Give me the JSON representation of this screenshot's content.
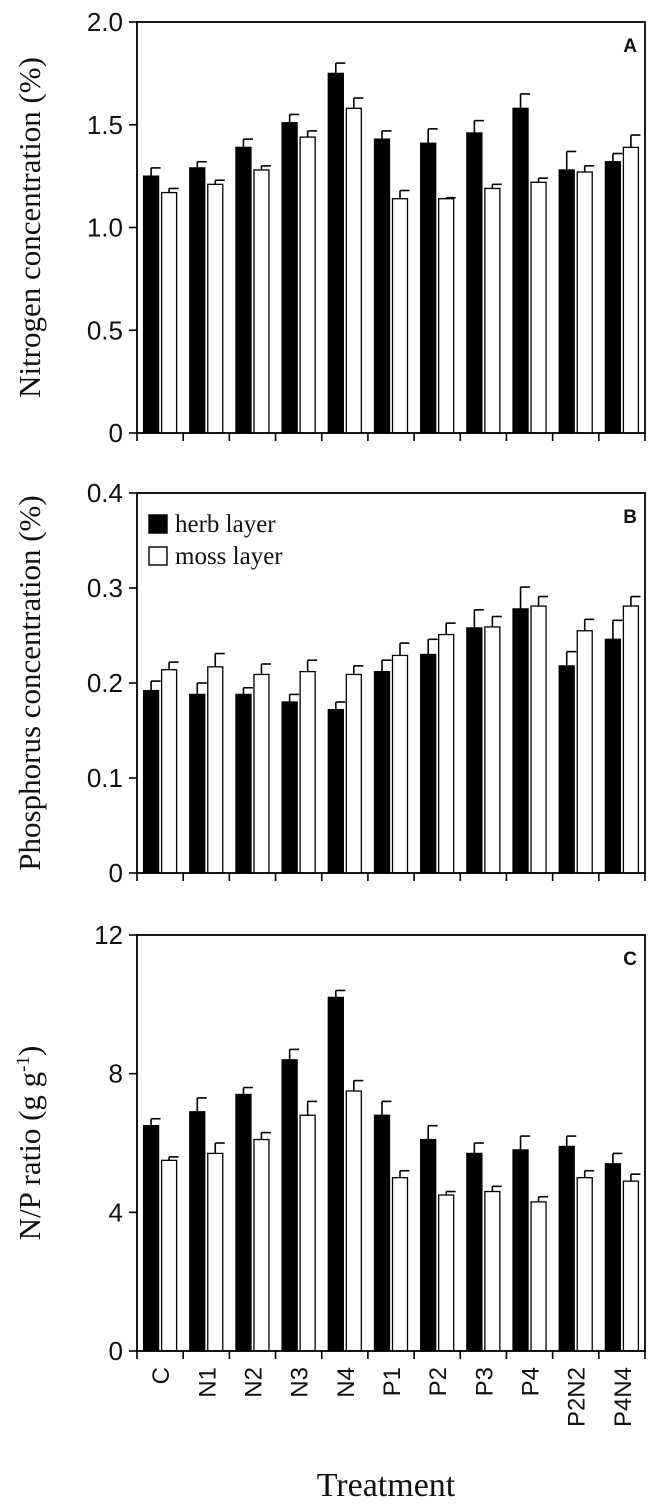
{
  "figure": {
    "xlabel": "Treatment"
  },
  "chart_data": [
    {
      "type": "bar",
      "panel": "A",
      "title": "",
      "xlabel": "",
      "ylabel": "Nitrogen concentration (%)",
      "ylim": [
        0,
        2.0
      ],
      "yticks": [
        "0",
        "0.5",
        "1.0",
        "1.5",
        "2.0"
      ],
      "ytick_values": [
        0,
        0.5,
        1.0,
        1.5,
        2.0
      ],
      "categories": [
        "C",
        "N1",
        "N2",
        "N3",
        "N4",
        "P1",
        "P2",
        "P3",
        "P4",
        "P2N2",
        "P4N4"
      ],
      "series": [
        {
          "name": "herb layer",
          "color": "#000000",
          "values": [
            1.25,
            1.29,
            1.39,
            1.51,
            1.75,
            1.43,
            1.41,
            1.46,
            1.58,
            1.28,
            1.32
          ],
          "errors": [
            0.04,
            0.03,
            0.04,
            0.04,
            0.05,
            0.04,
            0.07,
            0.06,
            0.07,
            0.09,
            0.04
          ]
        },
        {
          "name": "moss layer",
          "color": "#ffffff",
          "values": [
            1.17,
            1.21,
            1.28,
            1.44,
            1.58,
            1.14,
            1.14,
            1.19,
            1.22,
            1.27,
            1.39
          ],
          "errors": [
            0.02,
            0.02,
            0.02,
            0.03,
            0.05,
            0.04,
            0.005,
            0.02,
            0.02,
            0.03,
            0.06
          ]
        }
      ],
      "legend": false,
      "grid": false
    },
    {
      "type": "bar",
      "panel": "B",
      "title": "",
      "xlabel": "",
      "ylabel": "Phosphorus concentration (%)",
      "ylim": [
        0,
        0.4
      ],
      "yticks": [
        "0",
        "0.1",
        "0.2",
        "0.3",
        "0.4"
      ],
      "ytick_values": [
        0,
        0.1,
        0.2,
        0.3,
        0.4
      ],
      "categories": [
        "C",
        "N1",
        "N2",
        "N3",
        "N4",
        "P1",
        "P2",
        "P3",
        "P4",
        "P2N2",
        "P4N4"
      ],
      "series": [
        {
          "name": "herb layer",
          "color": "#000000",
          "values": [
            0.192,
            0.188,
            0.188,
            0.18,
            0.172,
            0.212,
            0.23,
            0.258,
            0.278,
            0.218,
            0.246
          ],
          "errors": [
            0.01,
            0.012,
            0.007,
            0.008,
            0.008,
            0.012,
            0.016,
            0.019,
            0.023,
            0.015,
            0.02
          ]
        },
        {
          "name": "moss layer",
          "color": "#ffffff",
          "values": [
            0.214,
            0.217,
            0.209,
            0.212,
            0.209,
            0.229,
            0.251,
            0.259,
            0.281,
            0.255,
            0.281
          ],
          "errors": [
            0.008,
            0.014,
            0.011,
            0.012,
            0.009,
            0.013,
            0.012,
            0.011,
            0.01,
            0.012,
            0.01
          ]
        }
      ],
      "legend": true,
      "legend_placement": "top-left",
      "grid": false
    },
    {
      "type": "bar",
      "panel": "C",
      "title": "",
      "xlabel": "Treatment",
      "ylabel_main": "N/P ratio (g g",
      "ylabel_sup": "-1",
      "ylabel_close": ")",
      "ylim": [
        0,
        12
      ],
      "yticks": [
        "0",
        "4",
        "8",
        "12"
      ],
      "ytick_values": [
        0,
        4,
        8,
        12
      ],
      "categories": [
        "C",
        "N1",
        "N2",
        "N3",
        "N4",
        "P1",
        "P2",
        "P3",
        "P4",
        "P2N2",
        "P4N4"
      ],
      "series": [
        {
          "name": "herb layer",
          "color": "#000000",
          "values": [
            6.5,
            6.9,
            7.4,
            8.4,
            10.2,
            6.8,
            6.1,
            5.7,
            5.8,
            5.9,
            5.4
          ],
          "errors": [
            0.2,
            0.4,
            0.2,
            0.3,
            0.2,
            0.4,
            0.4,
            0.3,
            0.4,
            0.3,
            0.3
          ]
        },
        {
          "name": "moss layer",
          "color": "#ffffff",
          "values": [
            5.5,
            5.7,
            6.1,
            6.8,
            7.5,
            5.0,
            4.5,
            4.6,
            4.3,
            5.0,
            4.9
          ],
          "errors": [
            0.1,
            0.3,
            0.2,
            0.4,
            0.3,
            0.2,
            0.1,
            0.15,
            0.15,
            0.2,
            0.2
          ]
        }
      ],
      "legend": false,
      "grid": false
    }
  ]
}
